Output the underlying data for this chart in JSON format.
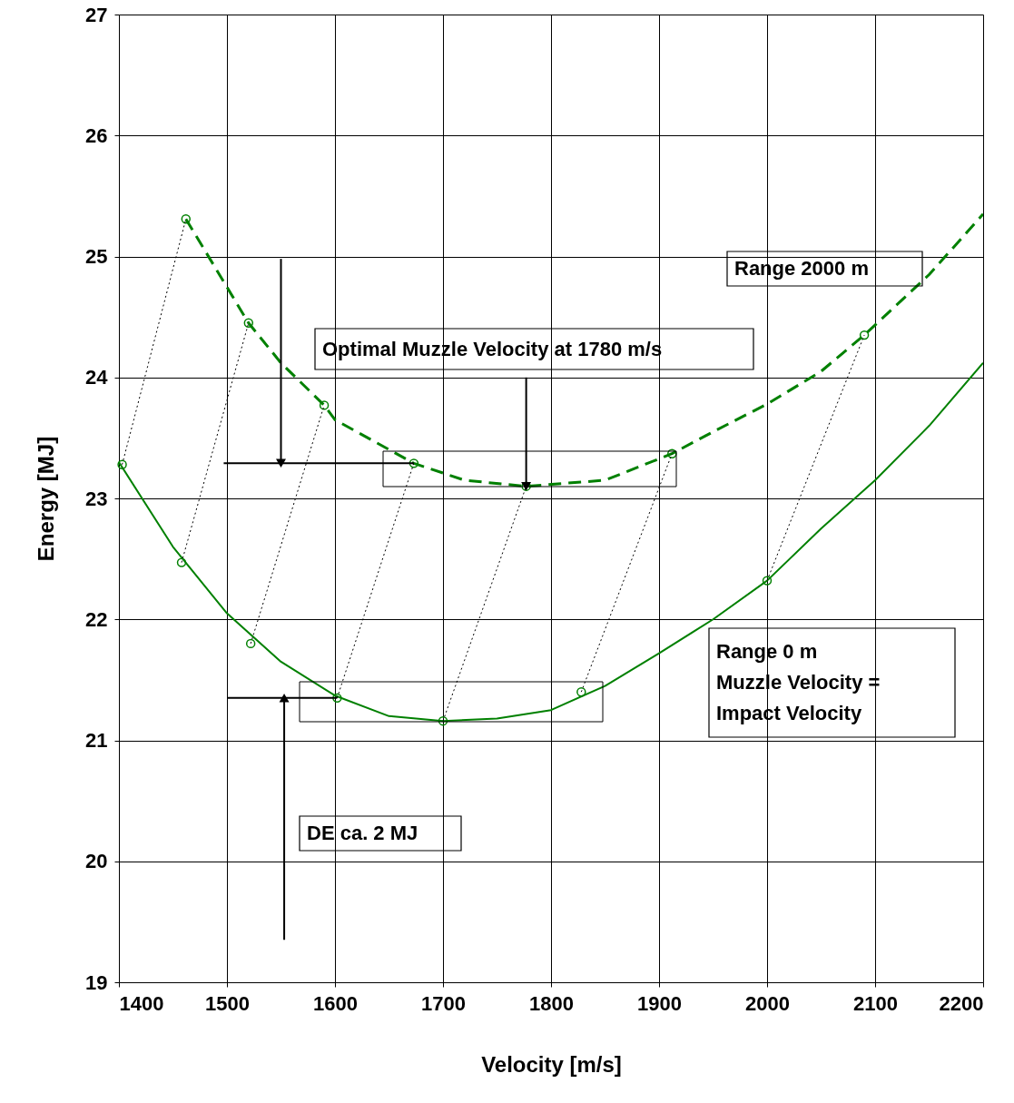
{
  "chart_data": {
    "type": "line",
    "xlabel": "Velocity [m/s]",
    "ylabel": "Energy  [MJ]",
    "xlim": [
      1400,
      2200
    ],
    "xticks": [
      1400,
      1500,
      1600,
      1700,
      1800,
      1900,
      2000,
      2100,
      2200
    ],
    "ylim": [
      19,
      27
    ],
    "yticks": [
      19,
      20,
      21,
      22,
      23,
      24,
      25,
      26,
      27
    ],
    "grid": true,
    "series": [
      {
        "color": "#008000",
        "line_style": "solid",
        "x": [
          1400,
          1450,
          1500,
          1550,
          1600,
          1650,
          1700,
          1750,
          1800,
          1850,
          1900,
          1950,
          2000,
          2050,
          2100,
          2150,
          2200
        ],
        "values": [
          23.3,
          22.6,
          22.05,
          21.65,
          21.37,
          21.2,
          21.16,
          21.18,
          21.25,
          21.45,
          21.72,
          22.0,
          22.32,
          22.75,
          23.15,
          23.6,
          24.12
        ]
      },
      {
        "color": "#008000",
        "line_style": "dashed",
        "x": [
          1462,
          1520,
          1550,
          1590,
          1600,
          1673,
          1720,
          1777,
          1850,
          1912,
          1950,
          2000,
          2050,
          2090,
          2150,
          2200
        ],
        "values": [
          25.31,
          24.45,
          24.12,
          23.77,
          23.65,
          23.29,
          23.15,
          23.1,
          23.15,
          23.37,
          23.55,
          23.78,
          24.05,
          24.35,
          24.85,
          25.35
        ]
      },
      {
        "type": "scatter",
        "color": "#008000",
        "marker": "circle",
        "x": [
          1403,
          1458,
          1522,
          1602,
          1700,
          1828,
          2000
        ],
        "values": [
          23.28,
          22.47,
          21.8,
          21.35,
          21.16,
          21.4,
          22.32
        ]
      },
      {
        "type": "scatter",
        "color": "#008000",
        "marker": "circle",
        "x": [
          1462,
          1520,
          1590,
          1673,
          1777,
          1912,
          2090
        ],
        "values": [
          25.31,
          24.45,
          23.77,
          23.29,
          23.1,
          23.37,
          24.35
        ]
      },
      {
        "type": "line",
        "color": "#000000",
        "line_style": "dotted",
        "x": [
          1403,
          1462
        ],
        "values": [
          23.28,
          25.31
        ]
      },
      {
        "type": "line",
        "color": "#000000",
        "line_style": "dotted",
        "x": [
          1458,
          1520
        ],
        "values": [
          22.47,
          24.45
        ]
      },
      {
        "type": "line",
        "color": "#000000",
        "line_style": "dotted",
        "x": [
          1522,
          1590
        ],
        "values": [
          21.8,
          23.77
        ]
      },
      {
        "type": "line",
        "color": "#000000",
        "line_style": "dotted",
        "x": [
          1602,
          1673
        ],
        "values": [
          21.35,
          23.29
        ]
      },
      {
        "type": "line",
        "color": "#000000",
        "line_style": "dotted",
        "x": [
          1700,
          1777
        ],
        "values": [
          21.16,
          23.1
        ]
      },
      {
        "type": "line",
        "color": "#000000",
        "line_style": "dotted",
        "x": [
          1828,
          1912
        ],
        "values": [
          21.4,
          23.37
        ]
      },
      {
        "type": "line",
        "color": "#000000",
        "line_style": "dotted",
        "x": [
          2000,
          2090
        ],
        "values": [
          22.32,
          24.35
        ]
      },
      {
        "type": "line",
        "color": "#000000",
        "line_style": "solid",
        "x": [
          1497,
          1673
        ],
        "values": [
          23.29,
          23.29
        ]
      },
      {
        "type": "line",
        "color": "#000000",
        "line_style": "solid",
        "x": [
          1500,
          1602
        ],
        "values": [
          21.35,
          21.35
        ]
      },
      {
        "type": "line",
        "color": "#000000",
        "line_style": "solid",
        "x": [
          1550,
          1550
        ],
        "values": [
          24.98,
          23.29
        ]
      },
      {
        "type": "line",
        "color": "#000000",
        "line_style": "solid",
        "x": [
          1553,
          1553
        ],
        "values": [
          19.35,
          21.35
        ]
      },
      {
        "type": "line",
        "color": "#000000",
        "line_style": "solid",
        "x": [
          1777,
          1777
        ],
        "values": [
          24.0,
          23.1
        ]
      }
    ],
    "annotations": [
      "Range 2000 m",
      "Optimal Muzzle Velocity at 1780 m/s",
      "Range 0 m\nMuzzle Velocity =\nImpact Velocity",
      "DE ca. 2 MJ"
    ]
  }
}
